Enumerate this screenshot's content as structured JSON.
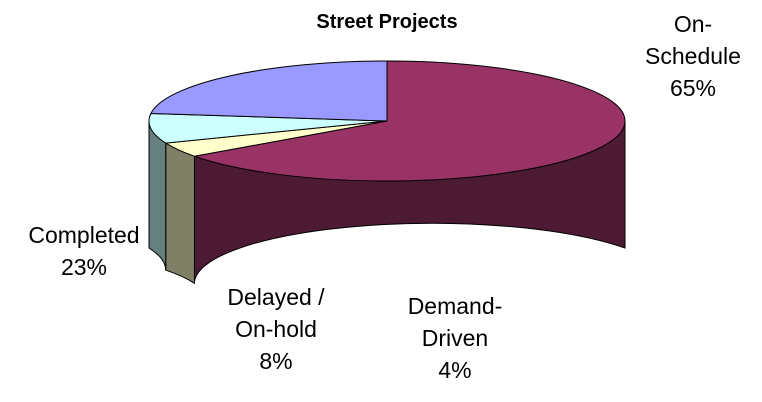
{
  "chart_data": {
    "type": "pie",
    "title": "Street Projects",
    "start_angle_deg": 90,
    "slices": [
      {
        "name": "On-Schedule",
        "label_lines": [
          "On-",
          "Schedule",
          "65%"
        ],
        "value": 65,
        "top_color": "#993366",
        "side_color": "#4d1a33"
      },
      {
        "name": "Demand-Driven",
        "label_lines": [
          "Demand-",
          "Driven",
          "4%"
        ],
        "value": 4,
        "top_color": "#ffffcc",
        "side_color": "#808066"
      },
      {
        "name": "Delayed / On-hold",
        "label_lines": [
          "Delayed /",
          "On-hold",
          "8%"
        ],
        "value": 8,
        "top_color": "#ccffff",
        "side_color": "#668080"
      },
      {
        "name": "Completed",
        "label_lines": [
          "Completed",
          "23%"
        ],
        "value": 23,
        "top_color": "#9999ff",
        "side_color": "#4d4d80"
      }
    ]
  }
}
